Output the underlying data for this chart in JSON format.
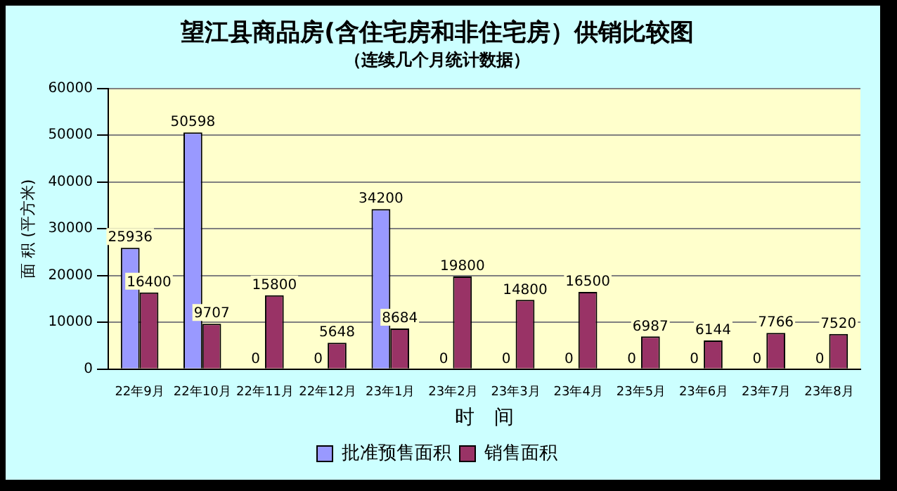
{
  "chart_data": {
    "type": "bar",
    "title": "望江县商品房(含住宅房和非住宅房）供销比较图",
    "subtitle": "（连续几个月统计数据）",
    "xlabel": "时　间",
    "ylabel": "面 积 (平方米)",
    "categories": [
      "22年9月",
      "22年10月",
      "22年11月",
      "22年12月",
      "23年1月",
      "23年2月",
      "23年3月",
      "23年4月",
      "23年5月",
      "23年6月",
      "23年7月",
      "23年8月"
    ],
    "series": [
      {
        "name": "批准预售面积",
        "color": "#9999ff",
        "values": [
          25936,
          50598,
          0,
          0,
          34200,
          0,
          0,
          0,
          0,
          0,
          0,
          0
        ]
      },
      {
        "name": "销售面积",
        "color": "#993366",
        "values": [
          16400,
          9707,
          15800,
          5648,
          8684,
          19800,
          14800,
          16500,
          6987,
          6144,
          7766,
          7520
        ]
      }
    ],
    "ylim": [
      0,
      60000
    ],
    "yticks": [
      0,
      10000,
      20000,
      30000,
      40000,
      50000,
      60000
    ],
    "grid": "y",
    "legend": "bottom",
    "data_labels": true
  }
}
